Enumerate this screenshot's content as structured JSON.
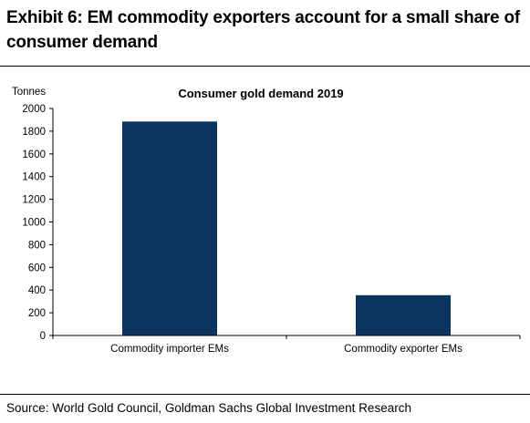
{
  "header": {
    "title": "Exhibit 6: EM commodity exporters account for a small share of consumer demand"
  },
  "footer": {
    "source": "Source: World Gold Council, Goldman Sachs Global Investment Research"
  },
  "chart_data": {
    "type": "bar",
    "title": "Consumer gold demand 2019",
    "ylabel": "Tonnes",
    "xlabel": "",
    "categories": [
      "Commodity importer EMs",
      "Commodity exporter EMs"
    ],
    "values": [
      1885,
      355
    ],
    "ylim": [
      0,
      2000
    ],
    "yticks": [
      0,
      200,
      400,
      600,
      800,
      1000,
      1200,
      1400,
      1600,
      1800,
      2000
    ],
    "bar_color": "#0b3560",
    "grid": false,
    "legend": "none"
  }
}
